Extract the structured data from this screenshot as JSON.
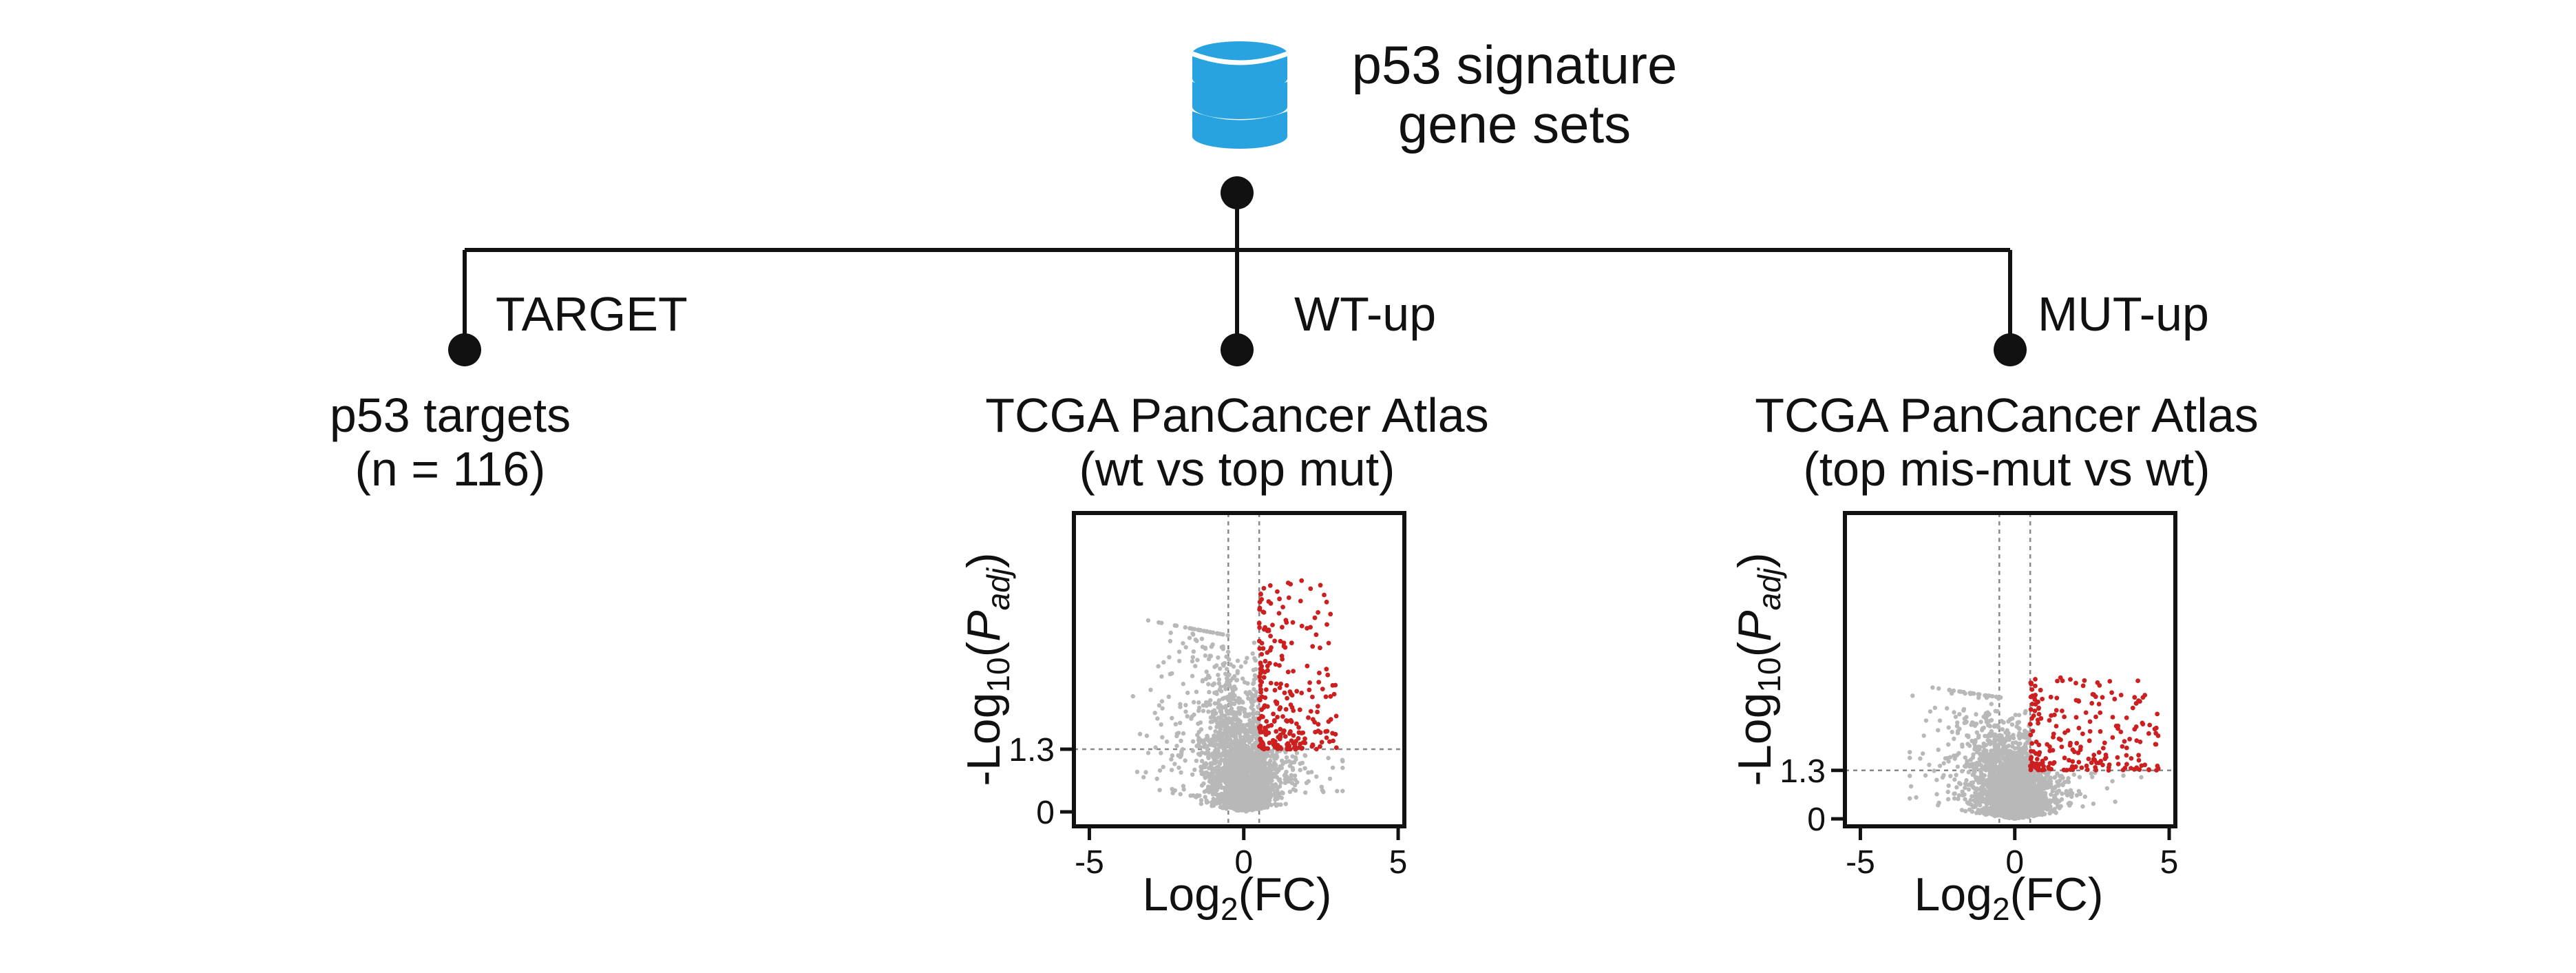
{
  "root": {
    "icon": "database-icon",
    "icon_color": "#29a3e0",
    "title_line1": "p53 signature",
    "title_line2": "gene sets"
  },
  "branches": [
    {
      "id": "target",
      "label": "TARGET",
      "title_line1": "p53 targets",
      "title_line2": "(n = 116)"
    },
    {
      "id": "wt-up",
      "label": "WT-up",
      "title_line1": "TCGA PanCancer Atlas",
      "title_line2": "(wt vs top mut)"
    },
    {
      "id": "mut-up",
      "label": "MUT-up",
      "title_line1": "TCGA PanCancer Atlas",
      "title_line2": "(top mis-mut vs wt)"
    }
  ],
  "colors": {
    "line": "#111111",
    "points_ns": "#b8b8b8",
    "points_sig": "#cc2020",
    "reference_line": "#888888"
  },
  "chart_data": [
    {
      "type": "scatter",
      "subtype": "volcano",
      "panel": "WT-up",
      "xlabel": "Log2(FC)",
      "ylabel": "-Log10(Padj)",
      "xticks": [
        -5,
        0,
        5
      ],
      "yticks": [
        0,
        1.3
      ],
      "xlim": [
        -5.5,
        5.2
      ],
      "ylim": [
        -0.3,
        6.2
      ],
      "reference_lines": {
        "x": [
          -0.5,
          0.5
        ],
        "y": 1.3
      },
      "highlight": "red points: Log2(FC) > 0.5 and -Log10(Padj) > 1.3",
      "series": [
        {
          "role": "background",
          "x_range": [
            -4.5,
            3.2
          ],
          "y_range": [
            0,
            3.6
          ]
        },
        {
          "role": "highlighted",
          "x_range": [
            0.5,
            3.0
          ],
          "y_range": [
            1.3,
            4.8
          ]
        }
      ]
    },
    {
      "type": "scatter",
      "subtype": "volcano",
      "panel": "MUT-up",
      "xlabel": "Log2(FC)",
      "ylabel": "-Log10(Padj)",
      "xticks": [
        -5,
        0,
        5
      ],
      "yticks": [
        0,
        1.3
      ],
      "xlim": [
        -5.5,
        5.2
      ],
      "ylim": [
        -0.2,
        8.2
      ],
      "reference_lines": {
        "x": [
          -0.5,
          0.5
        ],
        "y": 1.3
      },
      "highlight": "red points: Log2(FC) > 0.5 and -Log10(Padj) > 1.3",
      "series": [
        {
          "role": "background",
          "x_range": [
            -3.4,
            4.5
          ],
          "y_range": [
            0,
            3.2
          ]
        },
        {
          "role": "highlighted",
          "x_range": [
            0.5,
            4.7
          ],
          "y_range": [
            1.3,
            3.8
          ]
        }
      ]
    }
  ]
}
